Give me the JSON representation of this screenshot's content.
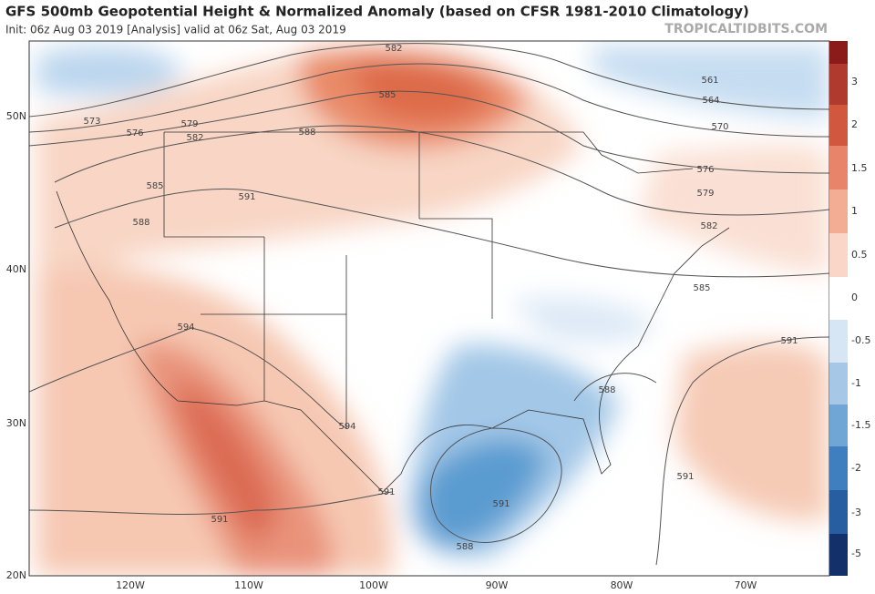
{
  "title": "GFS 500mb Geopotential Height & Normalized Anomaly (based on CFSR 1981-2010 Climatology)",
  "subtitle": "Init: 06z Aug 03 2019   [Analysis]   valid at 06z Sat, Aug 03 2019",
  "watermark": "TROPICALTIDBITS.COM",
  "latitude_labels": [
    "50N",
    "40N",
    "30N",
    "20N"
  ],
  "longitude_labels": [
    "120W",
    "110W",
    "100W",
    "90W",
    "80W",
    "70W"
  ],
  "colorbar_ticks": [
    3,
    2,
    1.5,
    1,
    0.5,
    0,
    -0.5,
    -1,
    -1.5,
    -2,
    -3,
    -5
  ],
  "contour_labels": [
    573,
    576,
    579,
    582,
    585,
    588,
    591,
    588,
    582,
    585,
    561,
    564,
    570,
    576,
    579,
    582,
    585,
    591,
    588,
    594,
    594,
    591,
    591,
    591,
    588,
    591
  ]
}
